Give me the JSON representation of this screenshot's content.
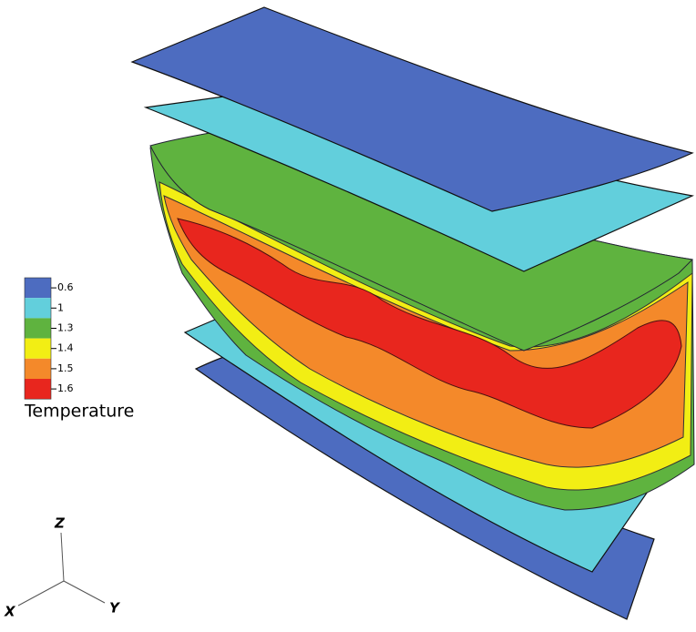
{
  "legend": {
    "title": "Temperature",
    "entries": [
      {
        "label": "0.6",
        "color": "#4d6cc0"
      },
      {
        "label": "1",
        "color": "#62cfdc"
      },
      {
        "label": "1.3",
        "color": "#5fb33f"
      },
      {
        "label": "1.4",
        "color": "#f2ee14"
      },
      {
        "label": "1.5",
        "color": "#f4892a"
      },
      {
        "label": "1.6",
        "color": "#e8261e"
      }
    ]
  },
  "axes": {
    "z": "Z",
    "x": "X",
    "y": "Y"
  }
}
